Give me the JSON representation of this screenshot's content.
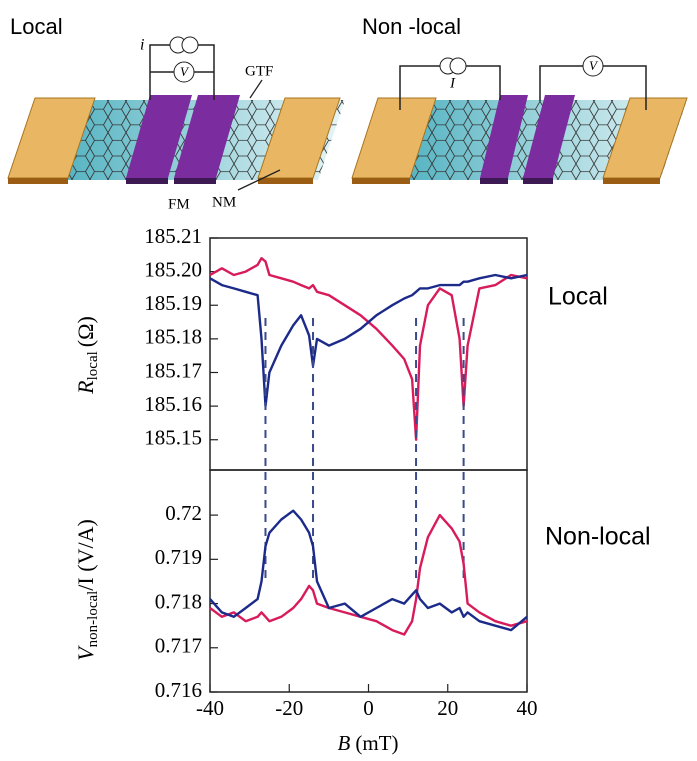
{
  "diagrams": {
    "local": {
      "title": "Local",
      "current_label": "i",
      "voltmeter_label": "V",
      "gtf_label": "GTF",
      "fm_label": "FM",
      "nm_label": "NM"
    },
    "nonlocal": {
      "title": "Non -local",
      "current_label": "I",
      "voltmeter_label": "V"
    }
  },
  "chart_data": [
    {
      "type": "line",
      "annotation": "Local",
      "ylabel": {
        "symbol": "R",
        "subscript": "local",
        "unit": "(Ω)"
      },
      "x": [
        -40,
        -37,
        -34,
        -31,
        -28,
        -27,
        -26,
        -25,
        -22,
        -19,
        -17,
        -15,
        -14,
        -13,
        -10,
        -6,
        -2,
        2,
        6,
        9,
        11,
        12,
        13,
        15,
        18,
        21,
        23,
        24,
        25,
        28,
        32,
        36,
        40
      ],
      "series": [
        {
          "color": "#d81b5a",
          "values": [
            185.199,
            185.201,
            185.199,
            185.2,
            185.202,
            185.204,
            185.203,
            185.199,
            185.198,
            185.197,
            185.196,
            185.195,
            185.196,
            185.194,
            185.193,
            185.19,
            185.187,
            185.183,
            185.178,
            185.174,
            185.168,
            185.15,
            185.178,
            185.19,
            185.195,
            185.193,
            185.18,
            185.16,
            185.178,
            185.195,
            185.196,
            185.199,
            185.198
          ]
        },
        {
          "color": "#1c2a8a",
          "values": [
            185.198,
            185.196,
            185.195,
            185.194,
            185.193,
            185.18,
            185.16,
            185.17,
            185.178,
            185.184,
            185.187,
            185.181,
            185.172,
            185.18,
            185.178,
            185.18,
            185.183,
            185.187,
            185.19,
            185.192,
            185.193,
            185.194,
            185.195,
            185.195,
            185.196,
            185.196,
            185.196,
            185.197,
            185.197,
            185.198,
            185.199,
            185.198,
            185.199
          ]
        }
      ],
      "switching_fields": [
        -26,
        -14,
        12,
        24
      ],
      "xlim": [
        -40,
        40
      ],
      "ylim": [
        185.141,
        185.21
      ],
      "yticks": [
        185.15,
        185.16,
        185.17,
        185.18,
        185.19,
        {
          "value": 185.2,
          "label": "185.20"
        },
        185.21
      ]
    },
    {
      "type": "line",
      "annotation": "Non-local",
      "ylabel": {
        "symbol": "V",
        "subscript": "non-local",
        "unit": "/I (V/A)"
      },
      "xlabel": {
        "symbol": "B",
        "unit": "(mT)"
      },
      "x": [
        -40,
        -37,
        -34,
        -31,
        -28,
        -27,
        -26,
        -25,
        -22,
        -19,
        -17,
        -15,
        -14,
        -13,
        -10,
        -6,
        -2,
        2,
        6,
        9,
        11,
        12,
        13,
        15,
        18,
        21,
        23,
        24,
        25,
        28,
        32,
        36,
        40
      ],
      "series": [
        {
          "color": "#d81b5a",
          "values": [
            0.7179,
            0.7177,
            0.7178,
            0.7176,
            0.7177,
            0.7178,
            0.7177,
            0.7176,
            0.7177,
            0.7179,
            0.7181,
            0.7184,
            0.7183,
            0.718,
            0.7179,
            0.7178,
            0.7177,
            0.7176,
            0.7174,
            0.7173,
            0.7176,
            0.7181,
            0.7188,
            0.7195,
            0.72,
            0.7197,
            0.7194,
            0.7189,
            0.718,
            0.7178,
            0.7176,
            0.7175,
            0.7176
          ]
        },
        {
          "color": "#1c2a8a",
          "values": [
            0.7181,
            0.7178,
            0.7177,
            0.7179,
            0.7181,
            0.7185,
            0.7193,
            0.7196,
            0.7199,
            0.7201,
            0.7199,
            0.7196,
            0.7193,
            0.7185,
            0.7179,
            0.718,
            0.7177,
            0.7179,
            0.7181,
            0.718,
            0.7182,
            0.7183,
            0.7181,
            0.7179,
            0.718,
            0.7178,
            0.7179,
            0.7177,
            0.7178,
            0.7176,
            0.7175,
            0.7174,
            0.7177
          ]
        }
      ],
      "xlim": [
        -40,
        40
      ],
      "ylim": [
        0.716,
        0.72102
      ],
      "xticks": [
        -40,
        -20,
        0,
        20,
        40
      ],
      "yticks": [
        0.716,
        0.717,
        0.718,
        0.719,
        0.72
      ]
    }
  ]
}
